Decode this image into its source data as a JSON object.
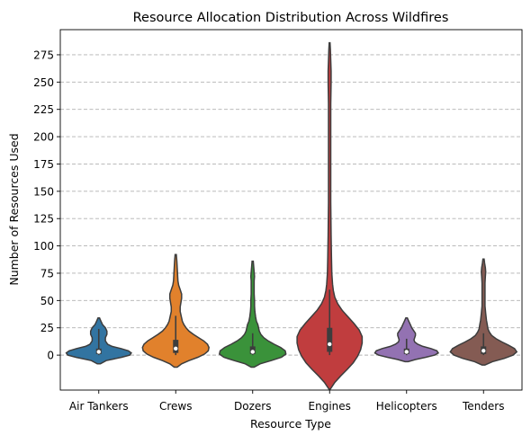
{
  "chart_data": {
    "type": "violin",
    "title": "Resource Allocation Distribution Across Wildfires",
    "xlabel": "Resource Type",
    "ylabel": "Number of Resources Used",
    "ylim": [
      -32,
      298
    ],
    "yticks": [
      0,
      25,
      50,
      75,
      100,
      125,
      150,
      175,
      200,
      225,
      250,
      275
    ],
    "grid": "y-dashed",
    "categories": [
      "Air Tankers",
      "Crews",
      "Dozers",
      "Engines",
      "Helicopters",
      "Tenders"
    ],
    "colors": [
      "#3274a1",
      "#e1812c",
      "#3a923a",
      "#c03d3e",
      "#9372b2",
      "#845b53"
    ],
    "violins": [
      {
        "category": "Air Tankers",
        "range": [
          -8,
          34
        ],
        "profile": [
          [
            -8,
            0.02
          ],
          [
            -5,
            0.1
          ],
          [
            -2,
            0.31
          ],
          [
            0,
            0.42
          ],
          [
            2,
            0.44
          ],
          [
            4,
            0.4
          ],
          [
            6,
            0.3
          ],
          [
            8,
            0.18
          ],
          [
            10,
            0.12
          ],
          [
            13,
            0.09
          ],
          [
            16,
            0.09
          ],
          [
            19,
            0.11
          ],
          [
            22,
            0.11
          ],
          [
            25,
            0.09
          ],
          [
            28,
            0.05
          ],
          [
            31,
            0.03
          ],
          [
            34,
            0.01
          ]
        ],
        "q1": 1,
        "median": 3,
        "q3": 6,
        "whisker": [
          0,
          24
        ]
      },
      {
        "category": "Crews",
        "range": [
          -11,
          92
        ],
        "profile": [
          [
            -11,
            0.02
          ],
          [
            -8,
            0.08
          ],
          [
            -5,
            0.18
          ],
          [
            -2,
            0.3
          ],
          [
            1,
            0.39
          ],
          [
            4,
            0.44
          ],
          [
            7,
            0.45
          ],
          [
            10,
            0.43
          ],
          [
            13,
            0.38
          ],
          [
            16,
            0.31
          ],
          [
            19,
            0.24
          ],
          [
            22,
            0.18
          ],
          [
            25,
            0.14
          ],
          [
            28,
            0.11
          ],
          [
            31,
            0.09
          ],
          [
            34,
            0.08
          ],
          [
            37,
            0.07
          ],
          [
            40,
            0.06
          ],
          [
            44,
            0.06
          ],
          [
            48,
            0.07
          ],
          [
            52,
            0.08
          ],
          [
            56,
            0.08
          ],
          [
            60,
            0.06
          ],
          [
            64,
            0.04
          ],
          [
            68,
            0.03
          ],
          [
            74,
            0.025
          ],
          [
            80,
            0.02
          ],
          [
            86,
            0.015
          ],
          [
            92,
            0.008
          ]
        ],
        "q1": 2,
        "median": 6,
        "q3": 14,
        "whisker": [
          0,
          36
        ]
      },
      {
        "category": "Dozers",
        "range": [
          -11,
          86
        ],
        "profile": [
          [
            -11,
            0.02
          ],
          [
            -8,
            0.1
          ],
          [
            -5,
            0.25
          ],
          [
            -2,
            0.39
          ],
          [
            1,
            0.45
          ],
          [
            4,
            0.44
          ],
          [
            7,
            0.38
          ],
          [
            10,
            0.29
          ],
          [
            13,
            0.21
          ],
          [
            16,
            0.15
          ],
          [
            19,
            0.11
          ],
          [
            22,
            0.09
          ],
          [
            25,
            0.08
          ],
          [
            28,
            0.07
          ],
          [
            31,
            0.05
          ],
          [
            35,
            0.04
          ],
          [
            40,
            0.03
          ],
          [
            45,
            0.025
          ],
          [
            50,
            0.025
          ],
          [
            56,
            0.02
          ],
          [
            62,
            0.02
          ],
          [
            68,
            0.02
          ],
          [
            72,
            0.025
          ],
          [
            76,
            0.02
          ],
          [
            80,
            0.015
          ],
          [
            86,
            0.008
          ]
        ],
        "q1": 1,
        "median": 3,
        "q3": 8,
        "whisker": [
          0,
          20
        ]
      },
      {
        "category": "Engines",
        "range": [
          -31,
          286
        ],
        "profile": [
          [
            -31,
            0.01
          ],
          [
            -25,
            0.07
          ],
          [
            -19,
            0.15
          ],
          [
            -13,
            0.24
          ],
          [
            -7,
            0.32
          ],
          [
            -1,
            0.38
          ],
          [
            5,
            0.42
          ],
          [
            11,
            0.44
          ],
          [
            17,
            0.44
          ],
          [
            23,
            0.4
          ],
          [
            29,
            0.33
          ],
          [
            35,
            0.25
          ],
          [
            41,
            0.17
          ],
          [
            47,
            0.11
          ],
          [
            53,
            0.07
          ],
          [
            59,
            0.05
          ],
          [
            65,
            0.04
          ],
          [
            75,
            0.03
          ],
          [
            90,
            0.025
          ],
          [
            110,
            0.02
          ],
          [
            140,
            0.015
          ],
          [
            170,
            0.015
          ],
          [
            200,
            0.015
          ],
          [
            230,
            0.015
          ],
          [
            250,
            0.02
          ],
          [
            260,
            0.02
          ],
          [
            270,
            0.015
          ],
          [
            280,
            0.01
          ],
          [
            286,
            0.006
          ]
        ],
        "q1": 3,
        "median": 10,
        "q3": 25,
        "whisker": [
          0,
          60
        ]
      },
      {
        "category": "Helicopters",
        "range": [
          -6,
          34
        ],
        "profile": [
          [
            -6,
            0.02
          ],
          [
            -4,
            0.12
          ],
          [
            -2,
            0.26
          ],
          [
            0,
            0.38
          ],
          [
            2,
            0.43
          ],
          [
            4,
            0.41
          ],
          [
            6,
            0.33
          ],
          [
            8,
            0.22
          ],
          [
            10,
            0.15
          ],
          [
            12,
            0.11
          ],
          [
            14,
            0.1
          ],
          [
            16,
            0.11
          ],
          [
            18,
            0.12
          ],
          [
            20,
            0.12
          ],
          [
            22,
            0.1
          ],
          [
            25,
            0.07
          ],
          [
            28,
            0.05
          ],
          [
            31,
            0.03
          ],
          [
            34,
            0.01
          ]
        ],
        "q1": 1,
        "median": 3,
        "q3": 6,
        "whisker": [
          0,
          15
        ]
      },
      {
        "category": "Tenders",
        "range": [
          -9,
          88
        ],
        "profile": [
          [
            -9,
            0.02
          ],
          [
            -6,
            0.12
          ],
          [
            -3,
            0.28
          ],
          [
            0,
            0.4
          ],
          [
            3,
            0.45
          ],
          [
            6,
            0.42
          ],
          [
            9,
            0.34
          ],
          [
            12,
            0.25
          ],
          [
            15,
            0.17
          ],
          [
            18,
            0.11
          ],
          [
            21,
            0.08
          ],
          [
            24,
            0.06
          ],
          [
            28,
            0.05
          ],
          [
            32,
            0.04
          ],
          [
            38,
            0.03
          ],
          [
            45,
            0.02
          ],
          [
            52,
            0.02
          ],
          [
            60,
            0.02
          ],
          [
            66,
            0.02
          ],
          [
            72,
            0.025
          ],
          [
            76,
            0.03
          ],
          [
            80,
            0.025
          ],
          [
            84,
            0.015
          ],
          [
            88,
            0.008
          ]
        ],
        "q1": 1,
        "median": 4,
        "q3": 8,
        "whisker": [
          0,
          20
        ]
      }
    ]
  }
}
